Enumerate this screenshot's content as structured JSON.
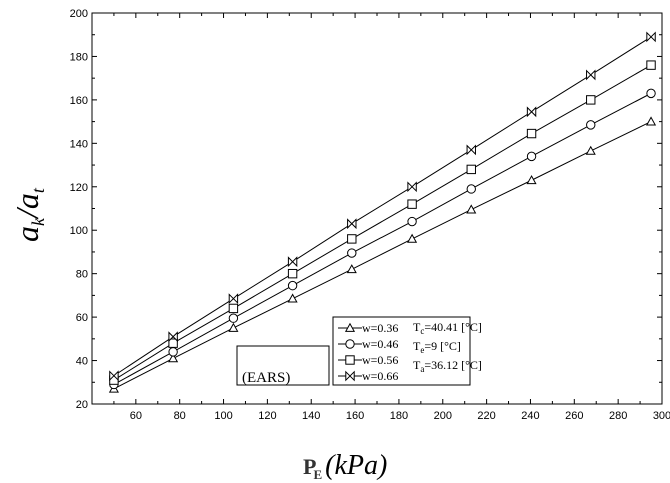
{
  "chart_data": {
    "type": "line",
    "title": "",
    "ylabel": {
      "main": "a",
      "sub1": "k",
      "slash": "/",
      "main2": "a",
      "sub2": "t"
    },
    "xlabel": {
      "symbol": "P",
      "sub": "E",
      "unit": "(kPa)"
    },
    "xlim": [
      40,
      300
    ],
    "ylim": [
      20,
      200
    ],
    "xticks": [
      60,
      80,
      100,
      120,
      140,
      160,
      180,
      200,
      220,
      240,
      260,
      280,
      300
    ],
    "yticks": [
      20,
      40,
      60,
      80,
      100,
      120,
      140,
      160,
      180,
      200
    ],
    "x": [
      50,
      77,
      104.5,
      131.5,
      158.5,
      186,
      213,
      240.5,
      267.5,
      295
    ],
    "series": [
      {
        "name": "w=0.36",
        "marker": "triangle",
        "values": [
          27,
          41,
          55,
          68.5,
          82,
          96,
          109.5,
          123,
          136.5,
          150
        ]
      },
      {
        "name": "w=0.46",
        "marker": "circle",
        "values": [
          29,
          44,
          59.5,
          74.5,
          89.5,
          104,
          119,
          134,
          148.5,
          163
        ]
      },
      {
        "name": "w=0.56",
        "marker": "square",
        "values": [
          31,
          48,
          64,
          80,
          96,
          112,
          128,
          144.5,
          160,
          176
        ]
      },
      {
        "name": "w=0.66",
        "marker": "bowtie",
        "values": [
          33,
          51,
          68.5,
          85.5,
          103,
          120,
          137,
          154.5,
          171.5,
          189
        ]
      }
    ],
    "legend_position": "bottom-right",
    "annotations": {
      "conditions": [
        {
          "sym": "T",
          "sub": "c",
          "val": "=40.41 [°C]"
        },
        {
          "sym": "T",
          "sub": "e",
          "val": "=9 [°C]"
        },
        {
          "sym": "T",
          "sub": "a",
          "val": "=36.12 [°C]"
        }
      ],
      "system_label": "(EARS)"
    },
    "grid": false
  }
}
